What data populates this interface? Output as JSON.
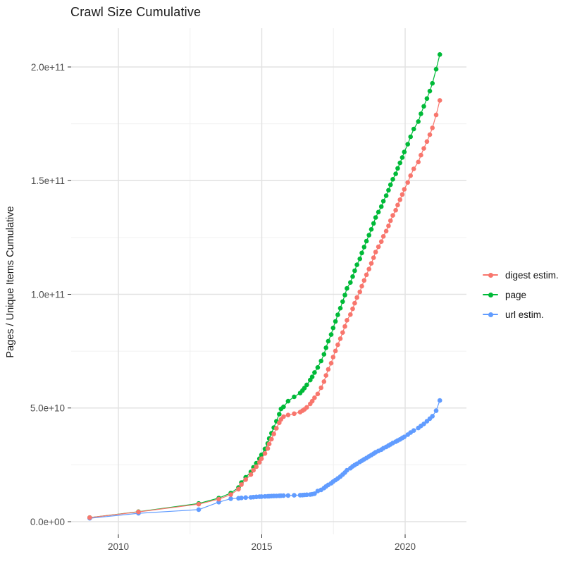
{
  "title": "Crawl Size Cumulative",
  "axes": {
    "y_title": "Pages / Unique Items Cumulative",
    "x_tick_labels": [
      "2010",
      "2015",
      "2020"
    ],
    "y_tick_labels": [
      "0.0e+00",
      "5.0e+10",
      "1.0e+11",
      "1.5e+11",
      "2.0e+11"
    ]
  },
  "legend": {
    "position": "right",
    "items": [
      {
        "label": "digest estim.",
        "color": "#F8766D"
      },
      {
        "label": "page",
        "color": "#00BA38"
      },
      {
        "label": "url estim.",
        "color": "#619CFF"
      }
    ]
  },
  "colors": {
    "background": "#FFFFFF",
    "grid_major": "#E2E2E2",
    "grid_minor": "#F0F0F0",
    "axis_text": "#4D4D4D",
    "tick_mark": "#333333",
    "title_text": "#1A1A1A"
  },
  "chart_data": {
    "type": "line",
    "markers": true,
    "title": "Crawl Size Cumulative",
    "xlabel": "",
    "ylabel": "Pages / Unique Items Cumulative",
    "x_unit": "year (decimal, one point per crawl)",
    "value_unit": "items, billions (1e9)",
    "x_range": [
      2008.5,
      2021.6
    ],
    "y_range_billions": [
      0,
      210
    ],
    "grid": true,
    "legend_position": "right",
    "x_ticks": [
      {
        "label": "2010",
        "value": 2010
      },
      {
        "label": "2015",
        "value": 2015
      },
      {
        "label": "2020",
        "value": 2020
      }
    ],
    "x_minor_ticks": [
      2012.5,
      2017.5
    ],
    "y_ticks": [
      {
        "label": "0.0e+00",
        "value": 0
      },
      {
        "label": "5.0e+10",
        "value": 50
      },
      {
        "label": "1.0e+11",
        "value": 100
      },
      {
        "label": "1.5e+11",
        "value": 150
      },
      {
        "label": "2.0e+11",
        "value": 200
      }
    ],
    "y_minor_ticks": [
      25,
      75,
      125,
      175
    ],
    "x": [
      2009.0,
      2010.7,
      2012.8,
      2013.5,
      2013.92,
      2014.19,
      2014.29,
      2014.44,
      2014.62,
      2014.71,
      2014.81,
      2014.92,
      2014.99,
      2015.11,
      2015.21,
      2015.26,
      2015.34,
      2015.42,
      2015.51,
      2015.61,
      2015.67,
      2015.76,
      2015.92,
      2016.13,
      2016.34,
      2016.42,
      2016.49,
      2016.57,
      2016.69,
      2016.76,
      2016.84,
      2016.95,
      2017.07,
      2017.17,
      2017.24,
      2017.32,
      2017.42,
      2017.49,
      2017.57,
      2017.65,
      2017.74,
      2017.82,
      2017.9,
      2017.97,
      2018.09,
      2018.17,
      2018.24,
      2018.32,
      2018.42,
      2018.49,
      2018.57,
      2018.65,
      2018.74,
      2018.82,
      2018.9,
      2018.97,
      2019.07,
      2019.17,
      2019.24,
      2019.34,
      2019.42,
      2019.49,
      2019.57,
      2019.67,
      2019.74,
      2019.82,
      2019.9,
      2019.97,
      2020.09,
      2020.19,
      2020.3,
      2020.46,
      2020.55,
      2020.65,
      2020.76,
      2020.86,
      2020.95,
      2021.08,
      2021.21
    ],
    "series": [
      {
        "id": "digest",
        "name": "digest estim.",
        "color": "#F8766D",
        "values": [
          1.8,
          4.3,
          7.7,
          9.9,
          11.9,
          14.3,
          16.3,
          18.5,
          20.7,
          22.6,
          24.2,
          26.1,
          27.7,
          30.0,
          32.2,
          34.2,
          36.3,
          38.6,
          41.1,
          43.5,
          45.0,
          46.2,
          46.9,
          47.5,
          48.2,
          48.8,
          49.4,
          50.3,
          51.8,
          53.0,
          54.5,
          56.2,
          58.9,
          61.6,
          64.3,
          67.0,
          69.7,
          72.4,
          75.1,
          77.8,
          80.5,
          83.2,
          85.9,
          88.6,
          91.1,
          93.6,
          96.1,
          98.6,
          101.1,
          103.6,
          106.1,
          108.6,
          111.1,
          113.6,
          116.1,
          118.6,
          120.9,
          123.2,
          125.5,
          127.8,
          130.1,
          132.4,
          134.7,
          137.0,
          139.3,
          141.6,
          143.9,
          146.2,
          149.2,
          152.2,
          155.2,
          158.2,
          161.2,
          164.2,
          167.2,
          170.2,
          173.2,
          178.9,
          185.3
        ]
      },
      {
        "id": "page",
        "name": "page",
        "color": "#00BA38",
        "values": [
          1.8,
          4.4,
          8.0,
          10.4,
          12.6,
          15.0,
          17.2,
          19.5,
          21.9,
          23.9,
          25.7,
          27.7,
          29.4,
          32.0,
          34.4,
          36.6,
          38.9,
          41.4,
          44.2,
          47.3,
          49.6,
          50.5,
          53.0,
          54.9,
          56.6,
          57.7,
          58.8,
          60.2,
          62.3,
          63.7,
          65.6,
          67.8,
          70.7,
          73.6,
          76.5,
          79.4,
          82.3,
          85.2,
          88.1,
          91.0,
          93.9,
          96.8,
          99.7,
          102.6,
          105.2,
          107.8,
          110.4,
          113.0,
          115.6,
          118.2,
          120.8,
          123.4,
          126.0,
          128.6,
          131.2,
          133.8,
          136.2,
          138.6,
          141.0,
          143.4,
          145.8,
          148.2,
          150.6,
          153.0,
          155.4,
          157.8,
          160.2,
          162.6,
          166.0,
          169.3,
          172.7,
          176.0,
          179.4,
          182.7,
          186.1,
          189.4,
          192.8,
          199.0,
          205.5
        ]
      },
      {
        "id": "url",
        "name": "url estim.",
        "color": "#619CFF",
        "values": [
          1.5,
          3.7,
          5.3,
          8.6,
          10.1,
          10.3,
          10.45,
          10.6,
          10.7,
          10.8,
          10.9,
          11.0,
          11.05,
          11.1,
          11.15,
          11.2,
          11.25,
          11.3,
          11.33,
          11.37,
          11.4,
          11.45,
          11.5,
          11.6,
          11.65,
          11.7,
          11.78,
          11.85,
          11.95,
          12.1,
          12.3,
          13.5,
          14.0,
          14.8,
          15.5,
          16.2,
          16.9,
          17.6,
          18.3,
          19.0,
          19.8,
          20.7,
          21.6,
          22.6,
          23.5,
          24.3,
          24.9,
          25.5,
          26.3,
          26.8,
          27.4,
          28.0,
          28.7,
          29.3,
          29.9,
          30.5,
          31.1,
          31.7,
          32.3,
          32.9,
          33.5,
          34.0,
          34.6,
          35.2,
          35.7,
          36.2,
          36.8,
          37.3,
          38.3,
          39.2,
          40.1,
          41.2,
          42.1,
          43.0,
          44.2,
          45.3,
          46.4,
          48.8,
          53.3
        ]
      }
    ]
  }
}
